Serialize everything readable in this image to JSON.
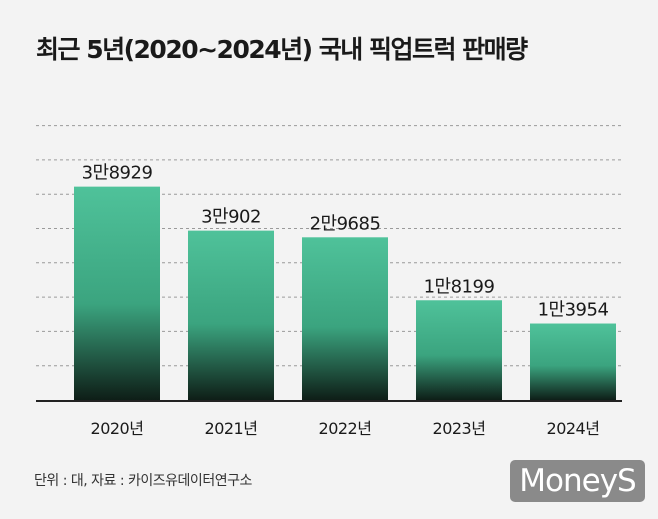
{
  "chart_data": {
    "type": "bar",
    "title": "최근 5년(2020~2024년) 국내 픽업트럭 판매량",
    "categories": [
      "2020년",
      "2021년",
      "2022년",
      "2023년",
      "2024년"
    ],
    "values": [
      38929,
      30902,
      29685,
      18199,
      13954
    ],
    "data_labels": [
      "3만8929",
      "3만902",
      "2만9685",
      "1만8199",
      "1만3954"
    ],
    "ylim": [
      0,
      52000
    ],
    "grid": true,
    "colors": {
      "bar_top": "#4fc29a",
      "bar_mid": "#3ba47f",
      "bar_bottom": "#0e1e17",
      "grid": "#9a9a9a",
      "axis": "#222222"
    }
  },
  "footer": {
    "source_note": "단위 : 대, 자료 : 카이즈유데이터연구소",
    "logo": "MoneyS"
  }
}
